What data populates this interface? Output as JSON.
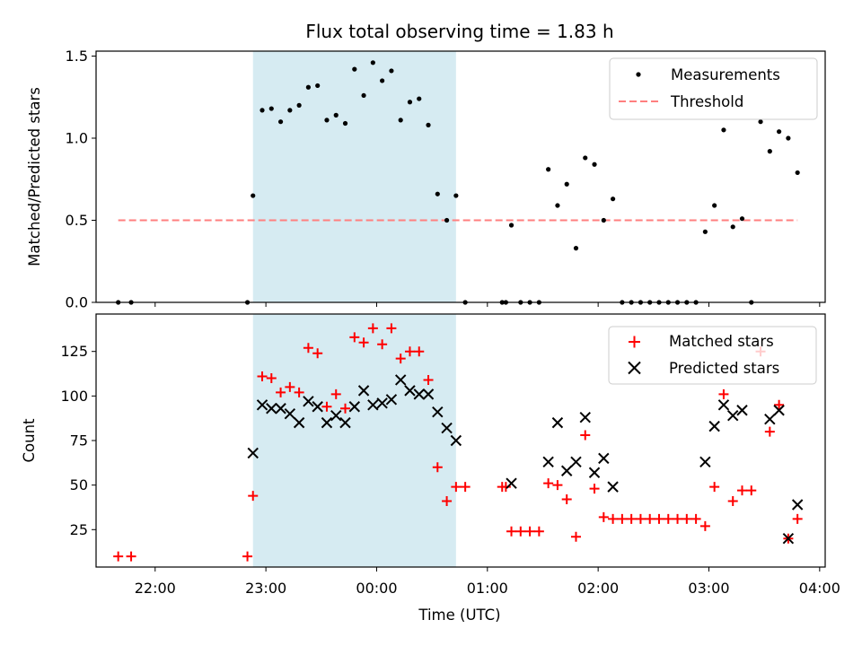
{
  "chart_data": [
    {
      "type": "scatter",
      "title": "Flux total observing time = 1.83 h",
      "xlabel": "",
      "ylabel": "Matched/Predicted stars",
      "xlim": [
        "21:28",
        "04:03"
      ],
      "ylim": [
        0,
        1.53
      ],
      "yticks": [
        0.0,
        0.5,
        1.0,
        1.5
      ],
      "ytick_labels": [
        "0.0",
        "0.5",
        "1.0",
        "1.5"
      ],
      "xticks": [
        "22:00",
        "23:00",
        "00:00",
        "01:00",
        "02:00",
        "03:00",
        "04:00"
      ],
      "grid": false,
      "legend_position": "top-right",
      "shaded_span": [
        "22:53",
        "00:43"
      ],
      "series": [
        {
          "name": "Measurements",
          "style": "dot",
          "color": "#000000",
          "points": [
            [
              "21:40",
              0.0
            ],
            [
              "21:47",
              0.0
            ],
            [
              "22:50",
              0.0
            ],
            [
              "22:53",
              0.65
            ],
            [
              "22:58",
              1.17
            ],
            [
              "23:03",
              1.18
            ],
            [
              "23:08",
              1.1
            ],
            [
              "23:13",
              1.17
            ],
            [
              "23:18",
              1.2
            ],
            [
              "23:23",
              1.31
            ],
            [
              "23:28",
              1.32
            ],
            [
              "23:33",
              1.11
            ],
            [
              "23:38",
              1.14
            ],
            [
              "23:43",
              1.09
            ],
            [
              "23:48",
              1.42
            ],
            [
              "23:53",
              1.26
            ],
            [
              "23:58",
              1.46
            ],
            [
              "00:03",
              1.35
            ],
            [
              "00:08",
              1.41
            ],
            [
              "00:13",
              1.11
            ],
            [
              "00:18",
              1.22
            ],
            [
              "00:23",
              1.24
            ],
            [
              "00:28",
              1.08
            ],
            [
              "00:33",
              0.66
            ],
            [
              "00:38",
              0.5
            ],
            [
              "00:43",
              0.65
            ],
            [
              "00:48",
              0.0
            ],
            [
              "01:08",
              0.0
            ],
            [
              "01:10",
              0.0
            ],
            [
              "01:13",
              0.47
            ],
            [
              "01:18",
              0.0
            ],
            [
              "01:23",
              0.0
            ],
            [
              "01:28",
              0.0
            ],
            [
              "01:33",
              0.81
            ],
            [
              "01:38",
              0.59
            ],
            [
              "01:43",
              0.72
            ],
            [
              "01:48",
              0.33
            ],
            [
              "01:53",
              0.88
            ],
            [
              "01:58",
              0.84
            ],
            [
              "02:03",
              0.5
            ],
            [
              "02:08",
              0.63
            ],
            [
              "02:13",
              0.0
            ],
            [
              "02:18",
              0.0
            ],
            [
              "02:23",
              0.0
            ],
            [
              "02:28",
              0.0
            ],
            [
              "02:33",
              0.0
            ],
            [
              "02:38",
              0.0
            ],
            [
              "02:43",
              0.0
            ],
            [
              "02:48",
              0.0
            ],
            [
              "02:53",
              0.0
            ],
            [
              "02:58",
              0.43
            ],
            [
              "03:03",
              0.59
            ],
            [
              "03:08",
              1.05
            ],
            [
              "03:13",
              0.46
            ],
            [
              "03:18",
              0.51
            ],
            [
              "03:23",
              0.0
            ],
            [
              "03:28",
              1.1
            ],
            [
              "03:33",
              0.92
            ],
            [
              "03:38",
              1.04
            ],
            [
              "03:43",
              1.0
            ],
            [
              "03:48",
              0.79
            ]
          ]
        },
        {
          "name": "Threshold",
          "style": "dashed-line",
          "color": "#ff7f7f",
          "points": [
            [
              "21:40",
              0.5
            ],
            [
              "03:48",
              0.5
            ]
          ]
        }
      ]
    },
    {
      "type": "scatter",
      "title": "",
      "xlabel": "Time (UTC)",
      "ylabel": "Count",
      "xlim": [
        "21:28",
        "04:03"
      ],
      "ylim": [
        4,
        146
      ],
      "yticks": [
        25,
        50,
        75,
        100,
        125
      ],
      "ytick_labels": [
        "25",
        "50",
        "75",
        "100",
        "125"
      ],
      "xticks": [
        "22:00",
        "23:00",
        "00:00",
        "01:00",
        "02:00",
        "03:00",
        "04:00"
      ],
      "xtick_labels": [
        "22:00",
        "23:00",
        "00:00",
        "01:00",
        "02:00",
        "03:00",
        "04:00"
      ],
      "grid": false,
      "legend_position": "top-right",
      "shaded_span": [
        "22:53",
        "00:43"
      ],
      "series": [
        {
          "name": "Matched stars",
          "style": "plus",
          "color": "#ff0000",
          "points": [
            [
              "21:40",
              10
            ],
            [
              "21:47",
              10
            ],
            [
              "22:50",
              10
            ],
            [
              "22:53",
              44
            ],
            [
              "22:58",
              111
            ],
            [
              "23:03",
              110
            ],
            [
              "23:08",
              102
            ],
            [
              "23:13",
              105
            ],
            [
              "23:18",
              102
            ],
            [
              "23:23",
              127
            ],
            [
              "23:28",
              124
            ],
            [
              "23:33",
              94
            ],
            [
              "23:38",
              101
            ],
            [
              "23:43",
              93
            ],
            [
              "23:48",
              133
            ],
            [
              "23:53",
              130
            ],
            [
              "23:58",
              138
            ],
            [
              "00:03",
              129
            ],
            [
              "00:08",
              138
            ],
            [
              "00:13",
              121
            ],
            [
              "00:18",
              125
            ],
            [
              "00:23",
              125
            ],
            [
              "00:28",
              109
            ],
            [
              "00:33",
              60
            ],
            [
              "00:38",
              41
            ],
            [
              "00:43",
              49
            ],
            [
              "00:48",
              49
            ],
            [
              "01:08",
              49
            ],
            [
              "01:10",
              49
            ],
            [
              "01:13",
              24
            ],
            [
              "01:18",
              24
            ],
            [
              "01:23",
              24
            ],
            [
              "01:28",
              24
            ],
            [
              "01:33",
              51
            ],
            [
              "01:38",
              50
            ],
            [
              "01:43",
              42
            ],
            [
              "01:48",
              21
            ],
            [
              "01:53",
              78
            ],
            [
              "01:58",
              48
            ],
            [
              "02:03",
              32
            ],
            [
              "02:08",
              31
            ],
            [
              "02:13",
              31
            ],
            [
              "02:18",
              31
            ],
            [
              "02:23",
              31
            ],
            [
              "02:28",
              31
            ],
            [
              "02:33",
              31
            ],
            [
              "02:38",
              31
            ],
            [
              "02:43",
              31
            ],
            [
              "02:48",
              31
            ],
            [
              "02:53",
              31
            ],
            [
              "02:58",
              27
            ],
            [
              "03:03",
              49
            ],
            [
              "03:08",
              101
            ],
            [
              "03:13",
              41
            ],
            [
              "03:18",
              47
            ],
            [
              "03:23",
              47
            ],
            [
              "03:28",
              125
            ],
            [
              "03:33",
              80
            ],
            [
              "03:38",
              95
            ],
            [
              "03:43",
              20
            ],
            [
              "03:48",
              31
            ]
          ]
        },
        {
          "name": "Predicted stars",
          "style": "x",
          "color": "#000000",
          "points": [
            [
              "22:53",
              68
            ],
            [
              "22:58",
              95
            ],
            [
              "23:03",
              93
            ],
            [
              "23:08",
              93
            ],
            [
              "23:13",
              90
            ],
            [
              "23:18",
              85
            ],
            [
              "23:23",
              97
            ],
            [
              "23:28",
              94
            ],
            [
              "23:33",
              85
            ],
            [
              "23:38",
              89
            ],
            [
              "23:43",
              85
            ],
            [
              "23:48",
              94
            ],
            [
              "23:53",
              103
            ],
            [
              "23:58",
              95
            ],
            [
              "00:03",
              96
            ],
            [
              "00:08",
              98
            ],
            [
              "00:13",
              109
            ],
            [
              "00:18",
              103
            ],
            [
              "00:23",
              101
            ],
            [
              "00:28",
              101
            ],
            [
              "00:33",
              91
            ],
            [
              "00:38",
              82
            ],
            [
              "00:43",
              75
            ],
            [
              "01:13",
              51
            ],
            [
              "01:33",
              63
            ],
            [
              "01:38",
              85
            ],
            [
              "01:43",
              58
            ],
            [
              "01:48",
              63
            ],
            [
              "01:53",
              88
            ],
            [
              "01:58",
              57
            ],
            [
              "02:03",
              65
            ],
            [
              "02:08",
              49
            ],
            [
              "02:58",
              63
            ],
            [
              "03:03",
              83
            ],
            [
              "03:08",
              95
            ],
            [
              "03:13",
              89
            ],
            [
              "03:18",
              92
            ],
            [
              "03:33",
              87
            ],
            [
              "03:38",
              92
            ],
            [
              "03:43",
              20
            ],
            [
              "03:48",
              39
            ]
          ]
        }
      ]
    }
  ]
}
